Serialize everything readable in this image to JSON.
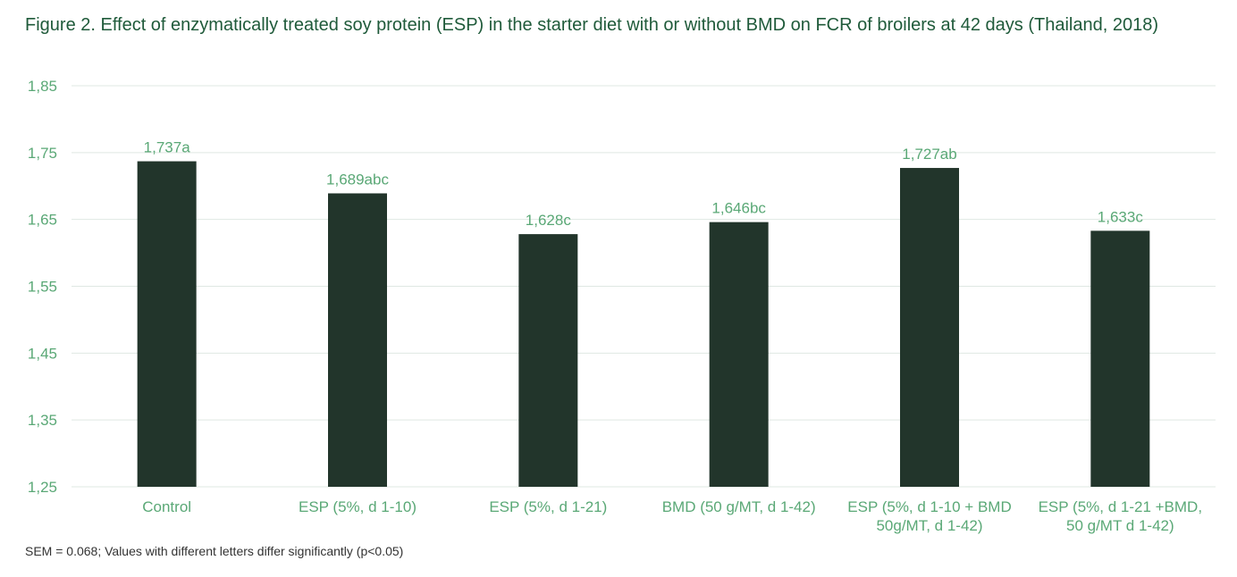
{
  "chart_data": {
    "type": "bar",
    "title": "Figure 2. Effect of enzymatically treated soy protein (ESP) in the starter diet  with or without BMD on FCR of broilers at 42 days (Thailand, 2018)",
    "footnote": "SEM = 0.068; Values with different letters differ significantly (p<0.05)",
    "categories": [
      [
        "Control"
      ],
      [
        "ESP (5%, d 1-10)"
      ],
      [
        "ESP (5%, d 1-21)"
      ],
      [
        "BMD (50 g/MT, d 1-42)"
      ],
      [
        "ESP (5%, d 1-10 + BMD",
        "50g/MT, d 1-42)"
      ],
      [
        "ESP (5%, d 1-21 +BMD,",
        "50 g/MT d 1-42)"
      ]
    ],
    "values": [
      1.737,
      1.689,
      1.628,
      1.646,
      1.727,
      1.633
    ],
    "data_labels": [
      "1,737a",
      "1,689abc",
      "1,628c",
      "1,646bc",
      "1,727ab",
      "1,633c"
    ],
    "yticks": [
      "1,25",
      "1,35",
      "1,45",
      "1,55",
      "1,65",
      "1,75",
      "1,85"
    ],
    "ylim": [
      1.25,
      1.85
    ],
    "grid": true,
    "colors": {
      "bar": "#22352b",
      "text": "#5aa876",
      "grid": "#dfe8e3",
      "title": "#1f5a3a"
    }
  }
}
